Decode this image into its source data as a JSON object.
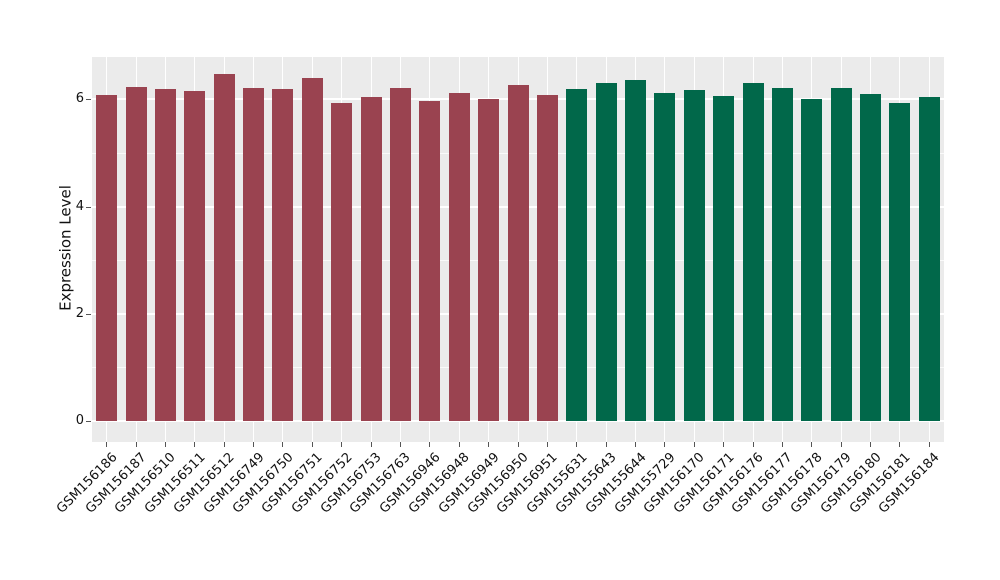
{
  "chart_data": {
    "type": "bar",
    "title": "",
    "ylabel": "Expression Level",
    "xlabel": "",
    "categories": [
      "GSM156186",
      "GSM156187",
      "GSM156510",
      "GSM156511",
      "GSM156512",
      "GSM156749",
      "GSM156750",
      "GSM156751",
      "GSM156752",
      "GSM156753",
      "GSM156763",
      "GSM156946",
      "GSM156948",
      "GSM156949",
      "GSM156950",
      "GSM156951",
      "GSM155631",
      "GSM155643",
      "GSM155644",
      "GSM155729",
      "GSM156170",
      "GSM156171",
      "GSM156176",
      "GSM156177",
      "GSM156178",
      "GSM156179",
      "GSM156180",
      "GSM156181",
      "GSM156184"
    ],
    "values": [
      6.08,
      6.23,
      6.2,
      6.15,
      6.48,
      6.22,
      6.2,
      6.39,
      5.93,
      6.05,
      6.22,
      5.97,
      6.12,
      6.01,
      6.27,
      6.09,
      6.2,
      6.31,
      6.37,
      6.12,
      6.17,
      6.07,
      6.31,
      6.22,
      6.01,
      6.22,
      6.1,
      5.93,
      6.04
    ],
    "groups": [
      "group1",
      "group1",
      "group1",
      "group1",
      "group1",
      "group1",
      "group1",
      "group1",
      "group1",
      "group1",
      "group1",
      "group1",
      "group1",
      "group1",
      "group1",
      "group1",
      "group2",
      "group2",
      "group2",
      "group2",
      "group2",
      "group2",
      "group2",
      "group2",
      "group2",
      "group2",
      "group2",
      "group2",
      "group2"
    ],
    "group_colors": {
      "group1": "#9A4350",
      "group2": "#01684A"
    },
    "ylim": [
      0,
      6.8
    ],
    "yticks_major": [
      0,
      2,
      4,
      6
    ],
    "yticks_minor": [
      1,
      3,
      5
    ],
    "grid": true,
    "legend_position": "none",
    "panel_background": "#EBEBEB",
    "gridline_color": "#FFFFFF",
    "x_label_rotation": -45,
    "bar_width_ratio": 0.7
  }
}
